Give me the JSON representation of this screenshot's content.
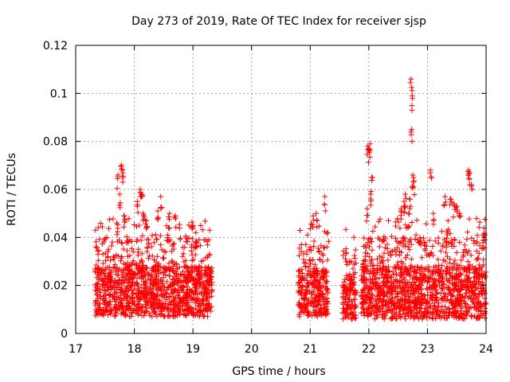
{
  "chart_data": {
    "type": "scatter",
    "title": "Day 273 of 2019, Rate Of TEC Index for receiver sjsp",
    "xlabel": "GPS time / hours",
    "ylabel": "ROTI / TECUs",
    "xlim": [
      17,
      24
    ],
    "ylim": [
      0,
      0.12
    ],
    "xticks": [
      "17",
      "18",
      "19",
      "20",
      "21",
      "22",
      "23",
      "24"
    ],
    "yticks": [
      "0",
      "0.02",
      "0.04",
      "0.06",
      "0.08",
      "0.1",
      "0.12"
    ],
    "grid": true,
    "marker": "+",
    "color": "#ff0000",
    "series": [
      {
        "name": "ROTI",
        "segments": [
          {
            "start": 17.33,
            "end": 19.33,
            "base_min": 0.007,
            "base_max": 0.028
          },
          {
            "start": 20.8,
            "end": 21.3,
            "base_min": 0.007,
            "base_max": 0.027
          },
          {
            "start": 21.55,
            "end": 21.78,
            "base_min": 0.006,
            "base_max": 0.024
          },
          {
            "start": 21.87,
            "end": 24.0,
            "base_min": 0.006,
            "base_max": 0.028
          }
        ],
        "spikes": [
          {
            "x": 17.72,
            "y": 0.066
          },
          {
            "x": 17.75,
            "y": 0.058
          },
          {
            "x": 17.78,
            "y": 0.07
          },
          {
            "x": 17.8,
            "y": 0.068
          },
          {
            "x": 17.7,
            "y": 0.046
          },
          {
            "x": 17.83,
            "y": 0.049
          },
          {
            "x": 18.05,
            "y": 0.055
          },
          {
            "x": 18.1,
            "y": 0.06
          },
          {
            "x": 18.12,
            "y": 0.058
          },
          {
            "x": 18.15,
            "y": 0.05
          },
          {
            "x": 18.2,
            "y": 0.047
          },
          {
            "x": 18.4,
            "y": 0.051
          },
          {
            "x": 18.45,
            "y": 0.057
          },
          {
            "x": 18.6,
            "y": 0.05
          },
          {
            "x": 18.7,
            "y": 0.049
          },
          {
            "x": 19.0,
            "y": 0.045
          },
          {
            "x": 19.05,
            "y": 0.042
          },
          {
            "x": 21.05,
            "y": 0.049
          },
          {
            "x": 21.1,
            "y": 0.05
          },
          {
            "x": 21.25,
            "y": 0.057
          },
          {
            "x": 21.3,
            "y": 0.042
          },
          {
            "x": 21.98,
            "y": 0.078
          },
          {
            "x": 22.0,
            "y": 0.077
          },
          {
            "x": 22.02,
            "y": 0.079
          },
          {
            "x": 22.05,
            "y": 0.065
          },
          {
            "x": 21.97,
            "y": 0.052
          },
          {
            "x": 22.03,
            "y": 0.058
          },
          {
            "x": 22.55,
            "y": 0.052
          },
          {
            "x": 22.6,
            "y": 0.055
          },
          {
            "x": 22.62,
            "y": 0.058
          },
          {
            "x": 22.72,
            "y": 0.106
          },
          {
            "x": 22.74,
            "y": 0.099
          },
          {
            "x": 22.73,
            "y": 0.085
          },
          {
            "x": 22.75,
            "y": 0.066
          },
          {
            "x": 22.76,
            "y": 0.063
          },
          {
            "x": 22.7,
            "y": 0.056
          },
          {
            "x": 22.68,
            "y": 0.05
          },
          {
            "x": 23.05,
            "y": 0.068
          },
          {
            "x": 23.1,
            "y": 0.05
          },
          {
            "x": 23.3,
            "y": 0.057
          },
          {
            "x": 23.4,
            "y": 0.056
          },
          {
            "x": 23.45,
            "y": 0.054
          },
          {
            "x": 23.5,
            "y": 0.053
          },
          {
            "x": 23.55,
            "y": 0.05
          },
          {
            "x": 23.7,
            "y": 0.068
          },
          {
            "x": 23.72,
            "y": 0.067
          },
          {
            "x": 23.75,
            "y": 0.062
          },
          {
            "x": 23.35,
            "y": 0.047
          }
        ]
      }
    ]
  }
}
